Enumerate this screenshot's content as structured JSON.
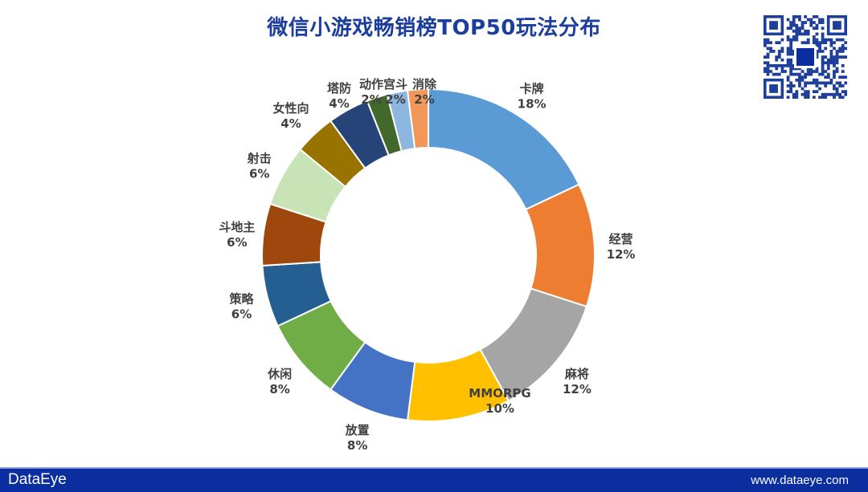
{
  "chart_data": {
    "type": "pie",
    "donut": true,
    "title": "微信小游戏畅销榜TOP50玩法分布",
    "categories": [
      "卡牌",
      "经营",
      "麻将",
      "MMORPG",
      "放置",
      "休闲",
      "策略",
      "斗地主",
      "射击",
      "女性向",
      "塔防",
      "动作",
      "宫斗",
      "消除"
    ],
    "values": [
      18,
      12,
      12,
      10,
      8,
      8,
      6,
      6,
      6,
      4,
      4,
      2,
      2,
      2
    ],
    "value_labels": [
      "18%",
      "12%",
      "12%",
      "10%",
      "8%",
      "8%",
      "6%",
      "6%",
      "6%",
      "4%",
      "4%",
      "2%",
      "2%",
      "2%"
    ],
    "colors": [
      "#5b9bd5",
      "#ed7d31",
      "#a5a5a5",
      "#ffc000",
      "#4472c4",
      "#70ad47",
      "#255e91",
      "#9e480e",
      "#c8e3b6",
      "#997300",
      "#264478",
      "#43682b",
      "#8db6e0",
      "#f1975a"
    ],
    "legend": "none"
  },
  "footer": {
    "brand": "DataEye",
    "website": "www.dataeye.com"
  },
  "qr_icon": "qr-code-icon"
}
